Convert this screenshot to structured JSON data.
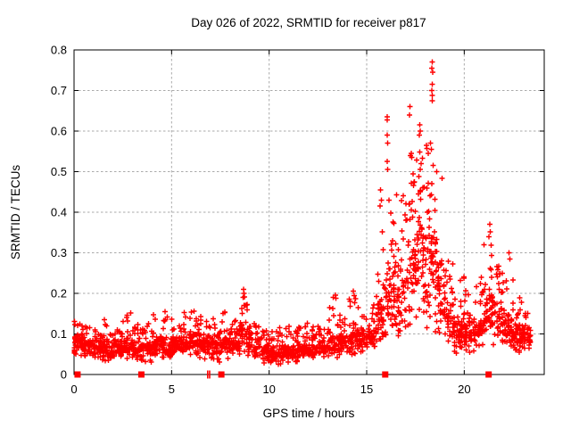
{
  "chart_data": {
    "type": "scatter",
    "title": "Day 026 of 2022, SRMTID for receiver p817",
    "xlabel": "GPS time / hours",
    "ylabel": "SRMTID / TECUs",
    "xlim": [
      0,
      24.1
    ],
    "ylim": [
      0,
      0.8
    ],
    "xticks": {
      "values": [
        0,
        5,
        10,
        15,
        20
      ],
      "labels": [
        "0",
        "5",
        "10",
        "15",
        "20"
      ]
    },
    "yticks": {
      "values": [
        0,
        0.1,
        0.2,
        0.3,
        0.4,
        0.5,
        0.6,
        0.7,
        0.8
      ],
      "labels": [
        "0",
        "0.1",
        "0.2",
        "0.3",
        "0.4",
        "0.5",
        "0.6",
        "0.7",
        "0.8"
      ]
    },
    "grid": {
      "show": true,
      "color": "#aaaaaa",
      "dash": "2.5,2.5"
    },
    "border_color": "#000000",
    "point_color": "#ff0000",
    "marker": "plus",
    "series_name": "SRMTID",
    "bin_format": [
      "x0_hours",
      "x1_hours",
      "count",
      "y_bulk_min",
      "y_bulk_max",
      "y_envelope_max"
    ],
    "density_bins": [
      [
        0.0,
        0.08,
        14,
        0.03,
        0.15,
        0.158
      ],
      [
        0.08,
        0.5,
        34,
        0.045,
        0.11,
        0.13
      ],
      [
        0.5,
        1.0,
        42,
        0.04,
        0.1,
        0.125
      ],
      [
        1.0,
        1.5,
        44,
        0.03,
        0.095,
        0.12
      ],
      [
        1.5,
        2.0,
        44,
        0.025,
        0.095,
        0.14
      ],
      [
        2.0,
        2.5,
        44,
        0.03,
        0.1,
        0.13
      ],
      [
        2.5,
        3.0,
        44,
        0.035,
        0.105,
        0.165
      ],
      [
        3.0,
        3.5,
        44,
        0.03,
        0.1,
        0.14
      ],
      [
        3.5,
        4.0,
        44,
        0.03,
        0.095,
        0.13
      ],
      [
        4.0,
        4.5,
        44,
        0.035,
        0.105,
        0.15
      ],
      [
        4.5,
        5.0,
        44,
        0.03,
        0.1,
        0.16
      ],
      [
        5.0,
        5.5,
        44,
        0.04,
        0.105,
        0.15
      ],
      [
        5.5,
        6.0,
        44,
        0.04,
        0.11,
        0.155
      ],
      [
        6.0,
        6.5,
        48,
        0.04,
        0.12,
        0.16
      ],
      [
        6.5,
        7.0,
        44,
        0.035,
        0.115,
        0.15
      ],
      [
        7.0,
        7.5,
        44,
        0.03,
        0.11,
        0.15
      ],
      [
        7.5,
        8.0,
        44,
        0.035,
        0.115,
        0.155
      ],
      [
        8.0,
        8.5,
        44,
        0.04,
        0.11,
        0.14
      ],
      [
        8.5,
        8.9,
        36,
        0.05,
        0.15,
        0.21
      ],
      [
        8.9,
        9.5,
        48,
        0.035,
        0.1,
        0.13
      ],
      [
        9.5,
        10.0,
        44,
        0.025,
        0.085,
        0.115
      ],
      [
        10.0,
        10.5,
        44,
        0.02,
        0.08,
        0.11
      ],
      [
        10.5,
        11.0,
        44,
        0.025,
        0.085,
        0.12
      ],
      [
        11.0,
        11.5,
        48,
        0.02,
        0.08,
        0.12
      ],
      [
        11.5,
        12.0,
        44,
        0.03,
        0.09,
        0.13
      ],
      [
        12.0,
        12.5,
        44,
        0.03,
        0.09,
        0.12
      ],
      [
        12.5,
        13.0,
        44,
        0.035,
        0.095,
        0.13
      ],
      [
        13.0,
        13.5,
        44,
        0.04,
        0.11,
        0.2
      ],
      [
        13.5,
        14.0,
        44,
        0.04,
        0.115,
        0.165
      ],
      [
        14.0,
        14.5,
        44,
        0.045,
        0.12,
        0.21
      ],
      [
        14.5,
        15.0,
        44,
        0.05,
        0.12,
        0.17
      ],
      [
        15.0,
        15.5,
        44,
        0.05,
        0.13,
        0.19
      ],
      [
        15.5,
        16.0,
        46,
        0.07,
        0.2,
        0.46
      ],
      [
        16.0,
        16.5,
        50,
        0.08,
        0.3,
        0.5
      ],
      [
        16.5,
        17.0,
        46,
        0.08,
        0.28,
        0.46
      ],
      [
        17.0,
        17.5,
        50,
        0.1,
        0.38,
        0.52
      ],
      [
        17.5,
        18.0,
        55,
        0.1,
        0.44,
        0.55
      ],
      [
        18.0,
        18.5,
        55,
        0.1,
        0.44,
        0.58
      ],
      [
        18.5,
        19.0,
        50,
        0.08,
        0.32,
        0.52
      ],
      [
        19.0,
        19.5,
        44,
        0.06,
        0.2,
        0.3
      ],
      [
        19.5,
        20.0,
        50,
        0.05,
        0.16,
        0.25
      ],
      [
        20.0,
        20.5,
        50,
        0.05,
        0.15,
        0.22
      ],
      [
        20.5,
        21.0,
        44,
        0.06,
        0.16,
        0.25
      ],
      [
        21.0,
        21.5,
        50,
        0.08,
        0.25,
        0.34
      ],
      [
        21.5,
        22.0,
        44,
        0.06,
        0.2,
        0.3
      ],
      [
        22.0,
        22.5,
        44,
        0.06,
        0.18,
        0.3
      ],
      [
        22.5,
        23.0,
        50,
        0.05,
        0.14,
        0.21
      ],
      [
        23.0,
        23.4,
        36,
        0.06,
        0.13,
        0.16
      ]
    ],
    "peak_points": [
      [
        18.36,
        0.77
      ],
      [
        18.33,
        0.755
      ],
      [
        18.39,
        0.745
      ],
      [
        18.36,
        0.715
      ],
      [
        18.34,
        0.7
      ],
      [
        18.37,
        0.688
      ],
      [
        18.35,
        0.675
      ],
      [
        17.22,
        0.66
      ],
      [
        17.2,
        0.64
      ],
      [
        16.06,
        0.635
      ],
      [
        16.04,
        0.628
      ],
      [
        16.05,
        0.59
      ],
      [
        16.08,
        0.57
      ],
      [
        16.04,
        0.525
      ],
      [
        16.07,
        0.505
      ],
      [
        17.72,
        0.615
      ],
      [
        17.75,
        0.6
      ],
      [
        17.7,
        0.59
      ],
      [
        17.78,
        0.52
      ],
      [
        17.74,
        0.505
      ],
      [
        18.28,
        0.57
      ],
      [
        18.31,
        0.555
      ],
      [
        17.28,
        0.545
      ],
      [
        17.25,
        0.54
      ],
      [
        17.31,
        0.535
      ],
      [
        18.6,
        0.5
      ],
      [
        15.7,
        0.455
      ],
      [
        15.75,
        0.43
      ],
      [
        15.68,
        0.415
      ],
      [
        21.3,
        0.37
      ],
      [
        21.33,
        0.352
      ],
      [
        21.27,
        0.34
      ],
      [
        22.3,
        0.3
      ],
      [
        22.33,
        0.285
      ],
      [
        8.68,
        0.21
      ],
      [
        8.72,
        0.2
      ],
      [
        14.32,
        0.205
      ],
      [
        14.36,
        0.195
      ],
      [
        13.4,
        0.196
      ],
      [
        13.43,
        0.188
      ]
    ],
    "baseline_squares": {
      "y": 0,
      "x": [
        0.18,
        3.45,
        7.55,
        15.95,
        21.25
      ]
    },
    "baseline_bars": {
      "y": 0,
      "x": [
        6.85,
        6.95
      ]
    }
  }
}
